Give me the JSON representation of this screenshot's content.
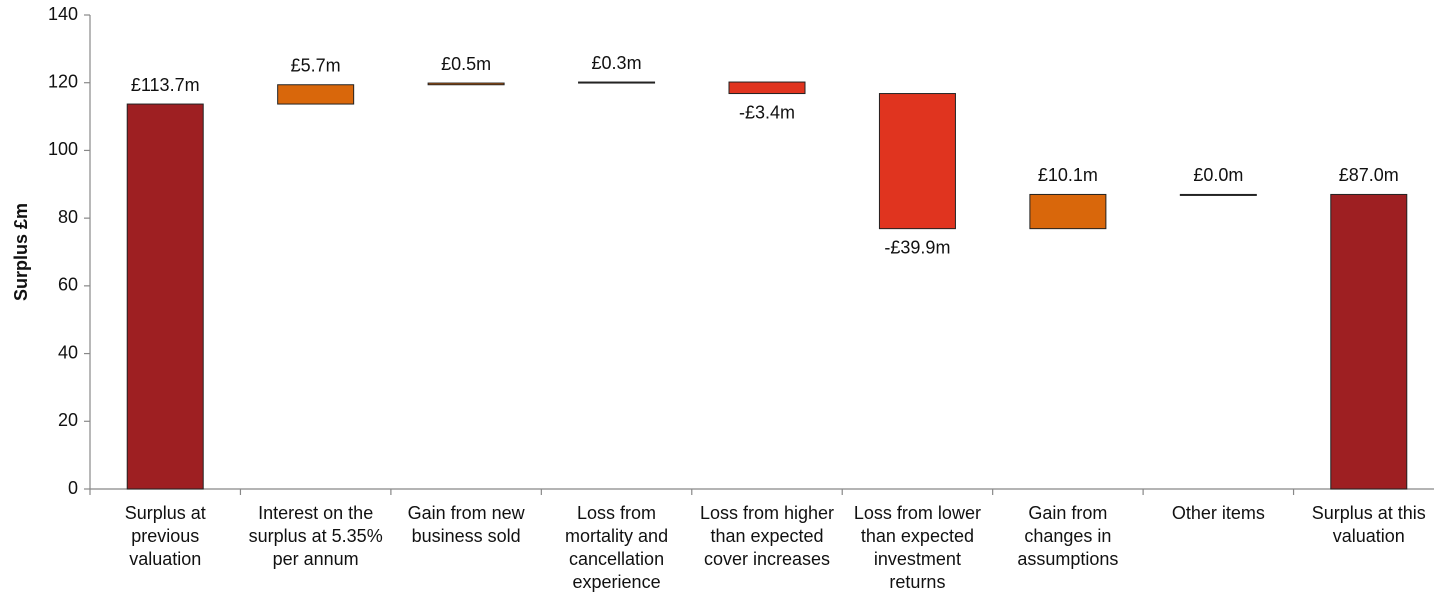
{
  "chart_data": {
    "type": "waterfall",
    "ylabel": "Surplus £m",
    "categories": [
      "Surplus at previous valuation",
      "Interest on the surplus at 5.35% per annum",
      "Gain from new business sold",
      "Loss from mortality and cancellation experience",
      "Loss from higher than expected cover increases",
      "Loss from lower than expected investment returns",
      "Gain from changes in assumptions",
      "Other items",
      "Surplus at this valuation"
    ],
    "measures": [
      "total",
      "relative",
      "relative",
      "relative",
      "relative",
      "relative",
      "relative",
      "relative",
      "total"
    ],
    "values": [
      113.7,
      5.7,
      0.5,
      0.3,
      -3.4,
      -39.9,
      10.1,
      0.0,
      87.0
    ],
    "value_labels": [
      "£113.7m",
      "£5.7m",
      "£0.5m",
      "£0.3m",
      "-£3.4m",
      "-£39.9m",
      "£10.1m",
      "£0.0m",
      "£87.0m"
    ],
    "colors": [
      "#9e1f22",
      "#d9670b",
      "#d9670b",
      "#d9670b",
      "#e0341f",
      "#e0341f",
      "#d9670b",
      "#d9670b",
      "#9e1f22"
    ],
    "ylim": [
      0,
      140
    ],
    "yticks": [
      0,
      20,
      40,
      60,
      80,
      100,
      120,
      140
    ]
  }
}
